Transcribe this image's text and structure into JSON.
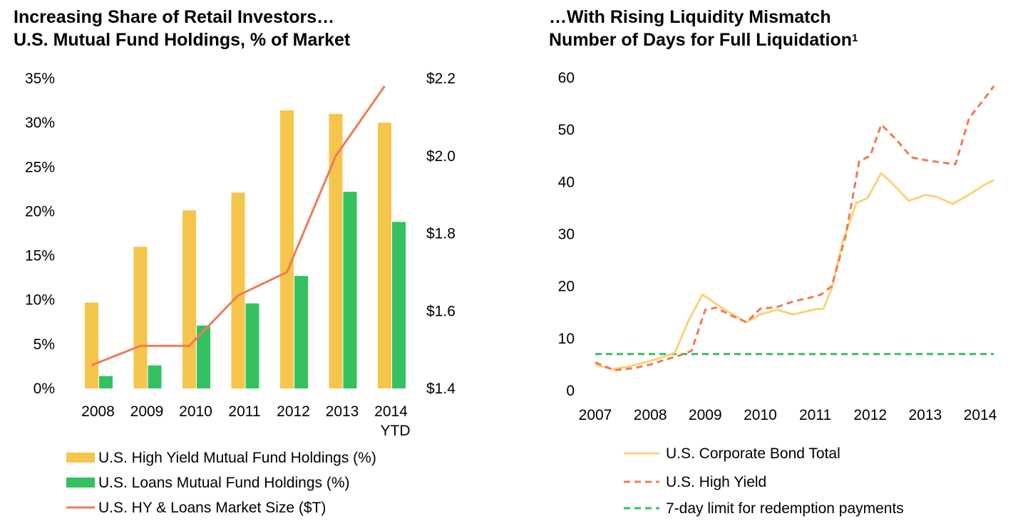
{
  "colors": {
    "hy_bar": "#F6C54C",
    "loans_bar": "#34C160",
    "market_line": "#F07B55",
    "corp_line": "#F9D37A",
    "hy_line": "#F07B55",
    "limit_line": "#34C160"
  },
  "chart_data": [
    {
      "type": "bar",
      "title": "Increasing Share of Retail Investors…",
      "subtitle": "U.S. Mutual Fund Holdings, % of Market",
      "categories": [
        "2008",
        "2009",
        "2010",
        "2011",
        "2012",
        "2013",
        "2014"
      ],
      "category_sublabels": [
        "",
        "",
        "",
        "",
        "",
        "",
        "YTD"
      ],
      "y_left": {
        "ylim": [
          0,
          35
        ],
        "ticks": [
          "0%",
          "5%",
          "10%",
          "15%",
          "20%",
          "25%",
          "30%",
          "35%"
        ]
      },
      "y_right": {
        "ylim": [
          1.4,
          2.2
        ],
        "ticks": [
          "$1.4",
          "$1.6",
          "$1.8",
          "$2.0",
          "$2.2"
        ]
      },
      "series": [
        {
          "name": "U.S. High Yield Mutual Fund Holdings (%)",
          "kind": "bar",
          "axis": "left",
          "values": [
            9.7,
            16.0,
            20.1,
            22.1,
            31.4,
            31.0,
            30.0
          ]
        },
        {
          "name": "U.S. Loans Mutual Fund Holdings (%)",
          "kind": "bar",
          "axis": "left",
          "values": [
            1.4,
            2.6,
            7.1,
            9.6,
            12.7,
            22.2,
            18.8
          ]
        },
        {
          "name": "U.S. HY & Loans Market Size ($T)",
          "kind": "line",
          "axis": "right",
          "values": [
            1.46,
            1.51,
            1.51,
            1.64,
            1.7,
            2.0,
            2.18
          ]
        }
      ],
      "legend": "bottom",
      "grid": false
    },
    {
      "type": "line",
      "title": "…With Rising Liquidity Mismatch",
      "subtitle": "Number of Days for Full Liquidation",
      "subtitle_sup": "1",
      "x_ticks": [
        "2007",
        "2008",
        "2009",
        "2010",
        "2011",
        "2012",
        "2013",
        "2014"
      ],
      "xlim": [
        2007,
        2014
      ],
      "ylim": [
        0,
        60
      ],
      "y_ticks": [
        "0",
        "10",
        "20",
        "30",
        "40",
        "50",
        "60"
      ],
      "series": [
        {
          "name": "U.S. Corporate Bond Total",
          "style": "solid",
          "points": [
            [
              2007.0,
              5.0
            ],
            [
              2007.3,
              4.1
            ],
            [
              2007.6,
              4.6
            ],
            [
              2007.9,
              5.4
            ],
            [
              2008.2,
              6.3
            ],
            [
              2008.45,
              7.3
            ],
            [
              2008.7,
              13.5
            ],
            [
              2008.95,
              18.4
            ],
            [
              2009.2,
              16.6
            ],
            [
              2009.45,
              14.9
            ],
            [
              2009.75,
              13.1
            ],
            [
              2010.0,
              14.6
            ],
            [
              2010.3,
              15.5
            ],
            [
              2010.6,
              14.6
            ],
            [
              2010.8,
              15.1
            ],
            [
              2011.0,
              15.6
            ],
            [
              2011.15,
              15.7
            ],
            [
              2011.3,
              19.6
            ],
            [
              2011.5,
              28.6
            ],
            [
              2011.75,
              36.0
            ],
            [
              2011.95,
              36.9
            ],
            [
              2012.2,
              41.7
            ],
            [
              2012.45,
              39.2
            ],
            [
              2012.7,
              36.4
            ],
            [
              2013.0,
              37.5
            ],
            [
              2013.2,
              37.2
            ],
            [
              2013.5,
              35.8
            ],
            [
              2013.8,
              37.6
            ],
            [
              2014.05,
              39.3
            ],
            [
              2014.25,
              40.4
            ]
          ]
        },
        {
          "name": "U.S. High Yield",
          "style": "dashed",
          "points": [
            [
              2007.0,
              5.4
            ],
            [
              2007.35,
              3.9
            ],
            [
              2007.7,
              4.3
            ],
            [
              2008.0,
              5.0
            ],
            [
              2008.3,
              6.0
            ],
            [
              2008.55,
              6.8
            ],
            [
              2008.75,
              7.6
            ],
            [
              2009.0,
              15.5
            ],
            [
              2009.2,
              15.9
            ],
            [
              2009.45,
              14.5
            ],
            [
              2009.75,
              13.1
            ],
            [
              2010.0,
              15.7
            ],
            [
              2010.3,
              16.0
            ],
            [
              2010.6,
              17.1
            ],
            [
              2010.9,
              17.8
            ],
            [
              2011.1,
              18.4
            ],
            [
              2011.3,
              20.0
            ],
            [
              2011.55,
              29.5
            ],
            [
              2011.8,
              44.0
            ],
            [
              2012.0,
              45.0
            ],
            [
              2012.2,
              51.0
            ],
            [
              2012.45,
              48.4
            ],
            [
              2012.75,
              44.7
            ],
            [
              2013.0,
              44.2
            ],
            [
              2013.25,
              43.8
            ],
            [
              2013.55,
              43.4
            ],
            [
              2013.8,
              52.3
            ],
            [
              2014.05,
              55.6
            ],
            [
              2014.25,
              58.4
            ]
          ]
        },
        {
          "name": "7-day limit for redemption payments",
          "style": "dashed",
          "points": [
            [
              2007.0,
              7.0
            ],
            [
              2014.25,
              7.0
            ]
          ]
        }
      ],
      "legend": "bottom",
      "grid": false
    }
  ]
}
